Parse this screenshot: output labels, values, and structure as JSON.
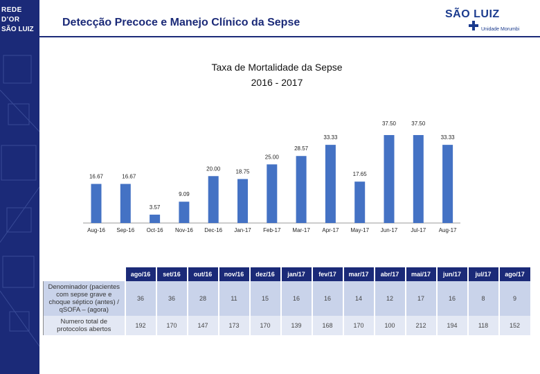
{
  "header": {
    "title": "Detecção Precoce e Manejo Clínico da Sepse",
    "logo_left_line1": "REDE D'OR",
    "logo_left_line2": "SÃO LUIZ",
    "logo_right_brand": "SÃO LUIZ",
    "logo_right_unit": "Unidade Morumbi"
  },
  "chart_data": {
    "type": "bar",
    "title_line1": "Taxa de Mortalidade  da Sepse",
    "title_line2": "2016 - 2017",
    "categories": [
      "Aug-16",
      "Sep-16",
      "Oct-16",
      "Nov-16",
      "Dec-16",
      "Jan-17",
      "Feb-17",
      "Mar-17",
      "Apr-17",
      "May-17",
      "Jun-17",
      "Jul-17",
      "Aug-17"
    ],
    "values": [
      16.67,
      16.67,
      3.57,
      9.09,
      20.0,
      18.75,
      25.0,
      28.57,
      33.33,
      17.65,
      37.5,
      37.5,
      33.33
    ],
    "labels": [
      "16.67",
      "16.67",
      "3.57",
      "9.09",
      "20.00",
      "18.75",
      "25.00",
      "28.57",
      "33.33",
      "17.65",
      "37.50",
      "37.50",
      "33.33"
    ],
    "ylim": [
      0,
      37.5
    ],
    "color": "#4472c4",
    "legend": "none",
    "grid": false
  },
  "table": {
    "columns": [
      "ago/16",
      "set/16",
      "out/16",
      "nov/16",
      "dez/16",
      "jan/17",
      "fev/17",
      "mar/17",
      "abr/17",
      "mai/17",
      "jun/17",
      "jul/17",
      "ago/17"
    ],
    "rows": [
      {
        "label": "Denominador (pacientes com sepse grave e choque séptico (antes) / qSOFA – (agora)",
        "values": [
          "36",
          "36",
          "28",
          "11",
          "15",
          "16",
          "16",
          "14",
          "12",
          "17",
          "16",
          "8",
          "9"
        ]
      },
      {
        "label": "Numero total de protocolos abertos",
        "values": [
          "192",
          "170",
          "147",
          "173",
          "170",
          "139",
          "168",
          "170",
          "100",
          "212",
          "194",
          "118",
          "152"
        ]
      }
    ]
  }
}
